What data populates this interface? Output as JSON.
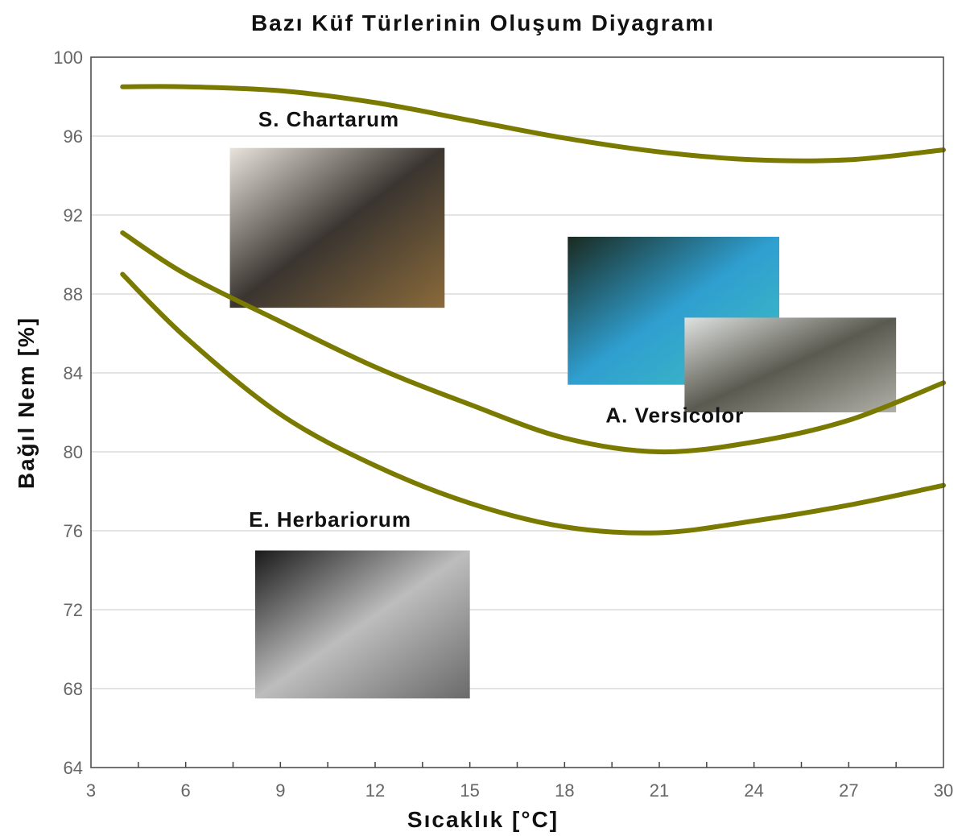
{
  "chart_data": {
    "type": "line",
    "title": "Bazı Küf Türlerinin Oluşum Diyagramı",
    "xlabel": "Sıcaklık [°C]",
    "ylabel": "Bağıl Nem [%]",
    "xlim": [
      3,
      30
    ],
    "ylim": [
      64,
      100
    ],
    "xticks": [
      3,
      6,
      9,
      12,
      15,
      18,
      21,
      24,
      27,
      30
    ],
    "yticks": [
      64,
      68,
      72,
      76,
      80,
      84,
      88,
      92,
      96,
      100
    ],
    "grid": "horizontal",
    "line_color": "#7a7a00",
    "series": [
      {
        "x": [
          4,
          6,
          9,
          12,
          15,
          18,
          21,
          24,
          27,
          30
        ],
        "y": [
          98.5,
          98.5,
          98.3,
          97.7,
          96.8,
          95.9,
          95.2,
          94.8,
          94.8,
          95.3
        ]
      },
      {
        "x": [
          4,
          6,
          9,
          12,
          15,
          18,
          21,
          24,
          27,
          30
        ],
        "y": [
          91.1,
          89.0,
          86.6,
          84.3,
          82.4,
          80.7,
          80.0,
          80.5,
          81.6,
          83.5
        ]
      },
      {
        "x": [
          4,
          6,
          9,
          12,
          15,
          18,
          21,
          24,
          27,
          30
        ],
        "y": [
          89.0,
          85.8,
          81.9,
          79.3,
          77.4,
          76.2,
          75.9,
          76.5,
          77.3,
          78.3
        ]
      }
    ],
    "annotations": [
      {
        "text": "S. Chartarum",
        "x": 8.3,
        "y": 96.5
      },
      {
        "text": "A. Versicolor",
        "x": 19.3,
        "y": 81.5
      },
      {
        "text": "E. Herbariorum",
        "x": 8.0,
        "y": 76.2
      }
    ],
    "images": [
      {
        "name": "s-chartarum-photo",
        "x": [
          7.4,
          14.2
        ],
        "y": [
          87.3,
          95.4
        ],
        "colors": [
          "#e8e4dc",
          "#3a3530",
          "#8a6a3a"
        ]
      },
      {
        "name": "a-versicolor-microscope-photo",
        "x": [
          18.1,
          24.8
        ],
        "y": [
          83.4,
          90.9
        ],
        "colors": [
          "#1a2a20",
          "#2f9fd0",
          "#40c0c0"
        ]
      },
      {
        "name": "a-versicolor-wall-photo",
        "x": [
          21.8,
          28.5
        ],
        "y": [
          82.0,
          86.8
        ],
        "colors": [
          "#e0e2e0",
          "#5a5a50",
          "#b0b0a8"
        ]
      },
      {
        "name": "e-herbariorum-microscope-photo",
        "x": [
          8.2,
          15.0
        ],
        "y": [
          67.5,
          75.0
        ],
        "colors": [
          "#1a1a1a",
          "#bdbdbd",
          "#6a6a6a"
        ]
      }
    ]
  }
}
